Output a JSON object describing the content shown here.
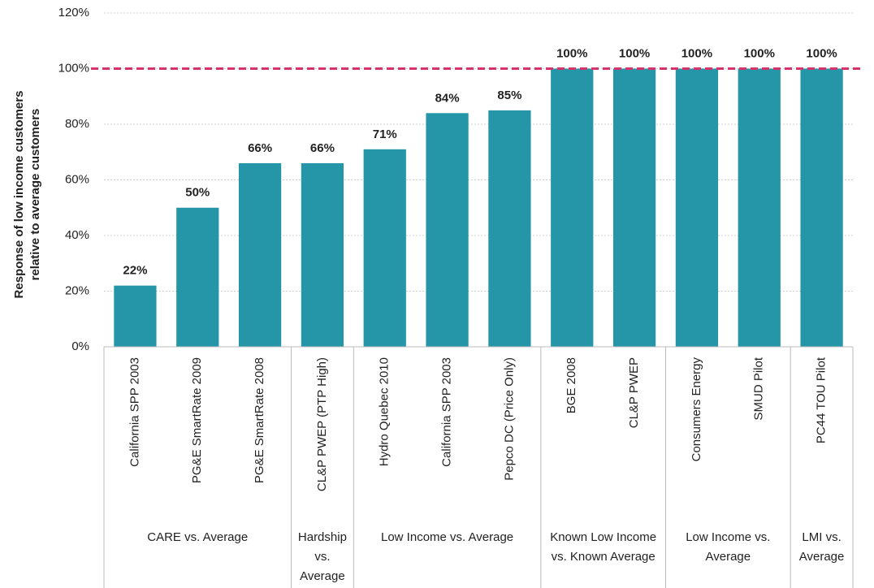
{
  "chart_data": {
    "type": "bar",
    "ylabel": [
      "Response of low income customers",
      "relative to average customers"
    ],
    "categories": [
      "California SPP 2003",
      "PG&E SmartRate 2009",
      "PG&E SmartRate 2008",
      "CL&P PWEP (PTP High)",
      "Hydro Quebec 2010",
      "California SPP 2003",
      "Pepco DC (Price Only)",
      "BGE 2008",
      "CL&P PWEP",
      "Consumers Energy",
      "SMUD Pilot",
      "PC44 TOU Pilot"
    ],
    "values": [
      22,
      50,
      66,
      66,
      71,
      84,
      85,
      100,
      100,
      100,
      100,
      100
    ],
    "value_labels": [
      "22%",
      "50%",
      "66%",
      "66%",
      "71%",
      "84%",
      "85%",
      "100%",
      "100%",
      "100%",
      "100%",
      "100%"
    ],
    "groups": [
      {
        "label": "CARE vs. Average",
        "span": 3
      },
      {
        "label": "Hardship vs. Average",
        "span": 1
      },
      {
        "label": "Low Income vs. Average",
        "span": 3
      },
      {
        "label": "Known Low Income vs. Known Average",
        "span": 2
      },
      {
        "label": "Low Income vs. Average",
        "span": 2
      },
      {
        "label": "LMI vs. Average",
        "span": 1
      }
    ],
    "color": "#2596a8",
    "reference_line": {
      "value": 100,
      "color": "#d6336c"
    },
    "ylim": [
      0,
      120
    ],
    "yticks": [
      {
        "value": 0,
        "label": "0%"
      },
      {
        "value": 20,
        "label": "20%"
      },
      {
        "value": 40,
        "label": "40%"
      },
      {
        "value": 60,
        "label": "60%"
      },
      {
        "value": 80,
        "label": "80%"
      },
      {
        "value": 100,
        "label": "100%"
      },
      {
        "value": 120,
        "label": "120%"
      }
    ],
    "grid": true
  }
}
